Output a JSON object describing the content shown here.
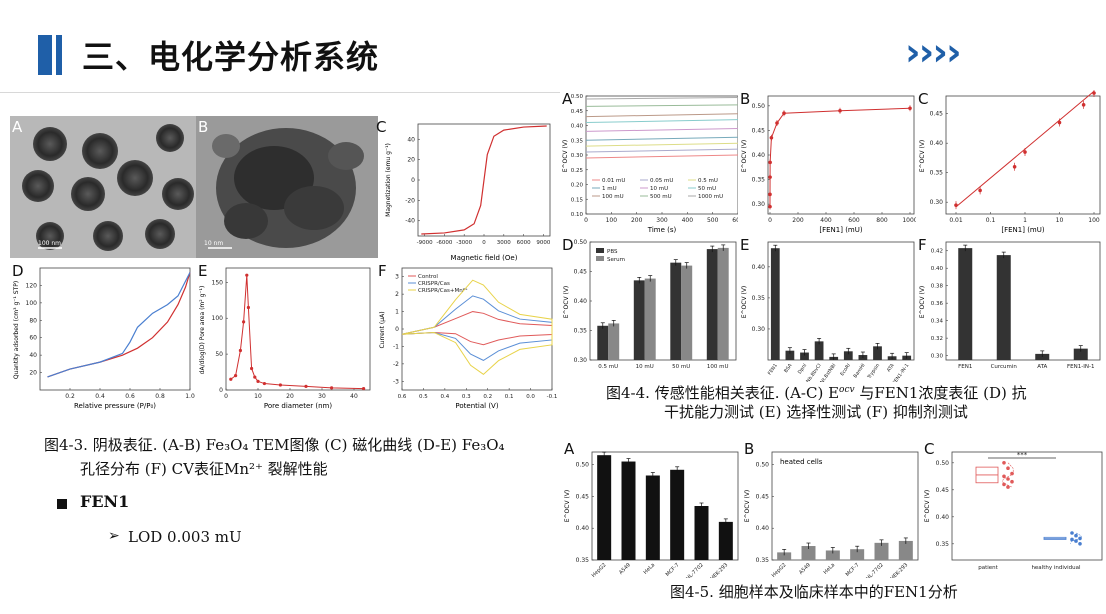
{
  "header": {
    "title": "三、电化学分析系统",
    "chevrons": "››››",
    "accent_color": "#1f5fa8"
  },
  "fig43": {
    "labels": [
      "A",
      "B",
      "C",
      "D",
      "E",
      "F"
    ],
    "scale_a": "100 nm",
    "scale_b": "10 nm",
    "C": {
      "xlabel": "Magnetic field (Oe)",
      "ylabel": "Magnetization (emu g⁻¹)",
      "xticks": [
        "-9000",
        "-6000",
        "-3000",
        "0",
        "3000",
        "6000",
        "9000"
      ],
      "yticks": [
        "40",
        "20",
        "0",
        "-20",
        "-40"
      ]
    },
    "D": {
      "xlabel": "Relative pressure (P/P₀)",
      "ylabel": "Quantity adsorbed (cm³ g⁻¹ STP)",
      "xticks": [
        "0.2",
        "0.4",
        "0.6",
        "0.8",
        "1.0"
      ],
      "yticks": [
        "120",
        "100",
        "80",
        "60",
        "40",
        "20"
      ]
    },
    "E": {
      "xlabel": "Pore diameter (nm)",
      "ylabel": "dA/dlog(D) Pore area (m² g⁻¹)",
      "xticks": [
        "0",
        "10",
        "20",
        "30",
        "40"
      ],
      "yticks": [
        "150",
        "100",
        "50",
        "0"
      ]
    },
    "F": {
      "xlabel": "Potential (V)",
      "ylabel": "Current (μA)",
      "xticks": [
        "0.6",
        "0.5",
        "0.4",
        "0.3",
        "0.2",
        "0.1",
        "0.0",
        "-0.1"
      ],
      "yticks": [
        "3",
        "2",
        "1",
        "0",
        "-1",
        "-2",
        "-3"
      ],
      "legend": [
        "Control",
        "CRISPR/Cas",
        "CRISPR/Cas+Mn²⁺"
      ],
      "colors": [
        "#e05a5a",
        "#5b8fd6",
        "#e8d34a"
      ]
    },
    "caption_line1": "图4-3. 阴极表征. (A-B) Fe₃O₄ TEM图像 (C) 磁化曲线 (D-E) Fe₃O₄",
    "caption_line2": "孔径分布 (F) CV表征Mn²⁺ 裂解性能"
  },
  "fen1": {
    "title": "FEN1",
    "bullet_arrow": "➢",
    "lod": "LOD 0.003 mU"
  },
  "fig44": {
    "A": {
      "xlabel": "Time (s)",
      "ylabel": "E^OCV (V)",
      "xticks": [
        "0",
        "100",
        "200",
        "300",
        "400",
        "500",
        "600"
      ],
      "yticks": [
        "0.50",
        "0.45",
        "0.40",
        "0.35",
        "0.30",
        "0.25",
        "0.20",
        "0.15",
        "0.10"
      ],
      "legend": [
        "0.01 mU",
        "0.05 mU",
        "0.5 mU",
        "1 mU",
        "10 mU",
        "50 mU",
        "100 mU",
        "500 mU",
        "1000 mU"
      ]
    },
    "B": {
      "xlabel": "[FEN1] (mU)",
      "ylabel": "E^OCV (V)",
      "xticks": [
        "0",
        "200",
        "400",
        "600",
        "800",
        "1000"
      ],
      "yticks": [
        "0.50",
        "0.45",
        "0.40",
        "0.35",
        "0.30"
      ]
    },
    "C": {
      "xlabel": "[FEN1] (mU)",
      "ylabel": "E^OCV (V)",
      "xticks": [
        "0.01",
        "0.1",
        "1",
        "10",
        "100"
      ],
      "yticks": [
        "0.45",
        "0.40",
        "0.35",
        "0.30"
      ]
    },
    "D": {
      "ylabel": "E^OCV (V)",
      "categories": [
        "0.5 mU",
        "10 mU",
        "50 mU",
        "100 mU"
      ],
      "yticks": [
        "0.50",
        "0.45",
        "0.40",
        "0.35",
        "0.30"
      ],
      "legend": [
        "PBS",
        "Serum"
      ]
    },
    "E": {
      "ylabel": "E^OCV (V)",
      "categories": [
        "FEN1",
        "BSA",
        "Dpnl",
        "Nb.BbvCI",
        "Nt.BstNBI",
        "EcoRI",
        "BamHI",
        "Trypsin",
        "ATA",
        "FEN1-IN-1"
      ],
      "yticks": [
        "0.40",
        "0.35",
        "0.30"
      ]
    },
    "F": {
      "ylabel": "E^OCV (V)",
      "categories": [
        "FEN1",
        "Curcumin",
        "ATA",
        "FEN1-IN-1"
      ],
      "yticks": [
        "0.42",
        "0.40",
        "0.38",
        "0.36",
        "0.34",
        "0.32",
        "0.30"
      ]
    },
    "caption_line1": "图4-4. 传感性能相关表征. (A-C) E",
    "caption_sup": "ocv",
    "caption_line1b": " 与FEN1浓度表征 (D) 抗",
    "caption_line2": "干扰能力测试 (E) 选择性测试 (F) 抑制剂测试"
  },
  "fig45": {
    "A": {
      "ylabel": "E^OCV (V)",
      "categories": [
        "HepG2",
        "A549",
        "HeLa",
        "MCF-7",
        "HL-7702",
        "HEK-293"
      ],
      "yticks": [
        "0.50",
        "0.45",
        "0.40",
        "0.35"
      ]
    },
    "B": {
      "ylabel": "E^OCV (V)",
      "annotation": "heated cells",
      "categories": [
        "HepG2",
        "A549",
        "HeLa",
        "MCF-7",
        "HL-7702",
        "HEK-293"
      ],
      "yticks": [
        "0.50",
        "0.45",
        "0.40",
        "0.35"
      ]
    },
    "C": {
      "ylabel": "E^OCV (V)",
      "categories": [
        "patient",
        "healthy individual"
      ],
      "yticks": [
        "0.50",
        "0.45",
        "0.40",
        "0.35"
      ],
      "significance": "***"
    },
    "caption": "图4-5. 细胞样本及临床样本中的FEN1分析"
  },
  "chart_data": [
    {
      "type": "line",
      "title": "",
      "xlabel": "Magnetic field (Oe)",
      "ylabel": "Magnetization (emu g⁻¹)",
      "xlim": [
        -10000,
        10000
      ],
      "ylim": [
        -55,
        55
      ],
      "series": [
        {
          "x": [
            -9500,
            -6000,
            -3000,
            -1500,
            -500,
            0,
            500,
            1500,
            3000,
            6000,
            9500
          ],
          "y": [
            -53,
            -52,
            -49,
            -43,
            -25,
            0,
            25,
            43,
            49,
            52,
            53
          ]
        }
      ]
    },
    {
      "type": "line",
      "xlabel": "Relative pressure (P/P₀)",
      "ylabel": "Quantity adsorbed (cm³ g⁻¹ STP)",
      "xlim": [
        0,
        1.0
      ],
      "ylim": [
        0,
        140
      ],
      "series": [
        {
          "x": [
            0.05,
            0.2,
            0.4,
            0.55,
            0.65,
            0.75,
            0.85,
            0.92,
            0.97,
            1.0
          ],
          "y": [
            15,
            24,
            32,
            40,
            48,
            60,
            78,
            98,
            118,
            135
          ]
        },
        {
          "x": [
            0.05,
            0.2,
            0.4,
            0.55,
            0.6,
            0.65,
            0.75,
            0.85,
            0.92,
            1.0
          ],
          "y": [
            15,
            24,
            32,
            42,
            55,
            72,
            88,
            98,
            108,
            135
          ]
        }
      ]
    },
    {
      "type": "line",
      "xlabel": "Pore diameter (nm)",
      "ylabel": "dA/dlog(D) Pore area (m² g⁻¹)",
      "xlim": [
        0,
        45
      ],
      "ylim": [
        0,
        170
      ],
      "series": [
        {
          "x": [
            1.5,
            3,
            4.5,
            5.5,
            6.5,
            7,
            8,
            9,
            10,
            12,
            17,
            25,
            33,
            43
          ],
          "y": [
            15,
            20,
            55,
            95,
            160,
            115,
            30,
            18,
            12,
            9,
            7,
            5,
            3,
            2
          ]
        }
      ]
    },
    {
      "type": "line",
      "xlabel": "Potential (V)",
      "ylabel": "Current (μA)",
      "xlim": [
        0.6,
        -0.1
      ],
      "ylim": [
        -3.5,
        3.5
      ],
      "series": [
        {
          "name": "Control",
          "peak_anodic": 1.0,
          "peak_cathodic": -0.9
        },
        {
          "name": "CRISPR/Cas",
          "peak_anodic": 1.9,
          "peak_cathodic": -1.8
        },
        {
          "name": "CRISPR/Cas+Mn²⁺",
          "peak_anodic": 2.8,
          "peak_cathodic": -2.6
        }
      ]
    },
    {
      "type": "line",
      "xlabel": "Time (s)",
      "ylabel": "E^OCV (V)",
      "xlim": [
        0,
        600
      ],
      "ylim": [
        0.1,
        0.5
      ],
      "series": [
        {
          "name": "0.01 mU",
          "y0": 0.3,
          "y1": 0.29
        },
        {
          "name": "0.05 mU",
          "y0": 0.32,
          "y1": 0.31
        },
        {
          "name": "0.5 mU",
          "y0": 0.34,
          "y1": 0.33
        },
        {
          "name": "1 mU",
          "y0": 0.36,
          "y1": 0.35
        },
        {
          "name": "10 mU",
          "y0": 0.39,
          "y1": 0.38
        },
        {
          "name": "50 mU",
          "y0": 0.42,
          "y1": 0.41
        },
        {
          "name": "100 mU",
          "y0": 0.44,
          "y1": 0.43
        },
        {
          "name": "500 mU",
          "y0": 0.47,
          "y1": 0.465
        },
        {
          "name": "1000 mU",
          "y0": 0.495,
          "y1": 0.49
        }
      ]
    },
    {
      "type": "scatter",
      "xlabel": "[FEN1] (mU)",
      "ylabel": "E^OCV (V)",
      "xlim": [
        0,
        1000
      ],
      "ylim": [
        0.28,
        0.52
      ],
      "x": [
        0.01,
        0.05,
        0.5,
        1,
        10,
        50,
        100,
        500,
        1000
      ],
      "y": [
        0.295,
        0.32,
        0.355,
        0.385,
        0.435,
        0.465,
        0.485,
        0.49,
        0.495
      ]
    },
    {
      "type": "scatter",
      "xlabel": "[FEN1] (mU)",
      "ylabel": "E^OCV (V)",
      "xlim": [
        0.01,
        100
      ],
      "ylim": [
        0.28,
        0.48
      ],
      "x": [
        0.01,
        0.05,
        0.5,
        1,
        10,
        50,
        100
      ],
      "y": [
        0.295,
        0.32,
        0.36,
        0.385,
        0.435,
        0.465,
        0.485
      ]
    },
    {
      "type": "bar",
      "ylabel": "E^OCV (V)",
      "categories": [
        "0.5 mU",
        "10 mU",
        "50 mU",
        "100 mU"
      ],
      "ylim": [
        0.3,
        0.5
      ],
      "series": [
        {
          "name": "PBS",
          "values": [
            0.358,
            0.435,
            0.465,
            0.488
          ],
          "color": "#333333"
        },
        {
          "name": "Serum",
          "values": [
            0.362,
            0.438,
            0.46,
            0.49
          ],
          "color": "#888888"
        }
      ]
    },
    {
      "type": "bar",
      "ylabel": "E^OCV (V)",
      "categories": [
        "FEN1",
        "BSA",
        "Dpnl",
        "Nb.BbvCI",
        "Nt.BstNBI",
        "EcoRI",
        "BamHI",
        "Trypsin",
        "ATA",
        "FEN1-IN-1"
      ],
      "ylim": [
        0.25,
        0.44
      ],
      "values": [
        0.43,
        0.265,
        0.262,
        0.28,
        0.255,
        0.264,
        0.258,
        0.272,
        0.256,
        0.257
      ]
    },
    {
      "type": "bar",
      "ylabel": "E^OCV (V)",
      "categories": [
        "FEN1",
        "Curcumin",
        "ATA",
        "FEN1-IN-1"
      ],
      "ylim": [
        0.295,
        0.43
      ],
      "values": [
        0.423,
        0.415,
        0.302,
        0.308
      ]
    },
    {
      "type": "bar",
      "ylabel": "E^OCV (V)",
      "categories": [
        "HepG2",
        "A549",
        "HeLa",
        "MCF-7",
        "HL-7702",
        "HEK-293"
      ],
      "ylim": [
        0.35,
        0.52
      ],
      "values": [
        0.515,
        0.505,
        0.483,
        0.492,
        0.435,
        0.41
      ]
    },
    {
      "type": "bar",
      "title": "heated cells",
      "ylabel": "E^OCV (V)",
      "categories": [
        "HepG2",
        "A549",
        "HeLa",
        "MCF-7",
        "HL-7702",
        "HEK-293"
      ],
      "ylim": [
        0.35,
        0.52
      ],
      "values": [
        0.362,
        0.372,
        0.365,
        0.367,
        0.377,
        0.38
      ]
    },
    {
      "type": "scatter",
      "ylabel": "E^OCV (V)",
      "categories": [
        "patient",
        "healthy individual"
      ],
      "ylim": [
        0.32,
        0.52
      ],
      "series": [
        {
          "name": "patient",
          "values": [
            0.5,
            0.49,
            0.48,
            0.475,
            0.47,
            0.465,
            0.46,
            0.455
          ],
          "color": "#e05a5a"
        },
        {
          "name": "healthy individual",
          "values": [
            0.37,
            0.365,
            0.36,
            0.358,
            0.355,
            0.35
          ],
          "color": "#4a7fd0"
        }
      ]
    }
  ]
}
